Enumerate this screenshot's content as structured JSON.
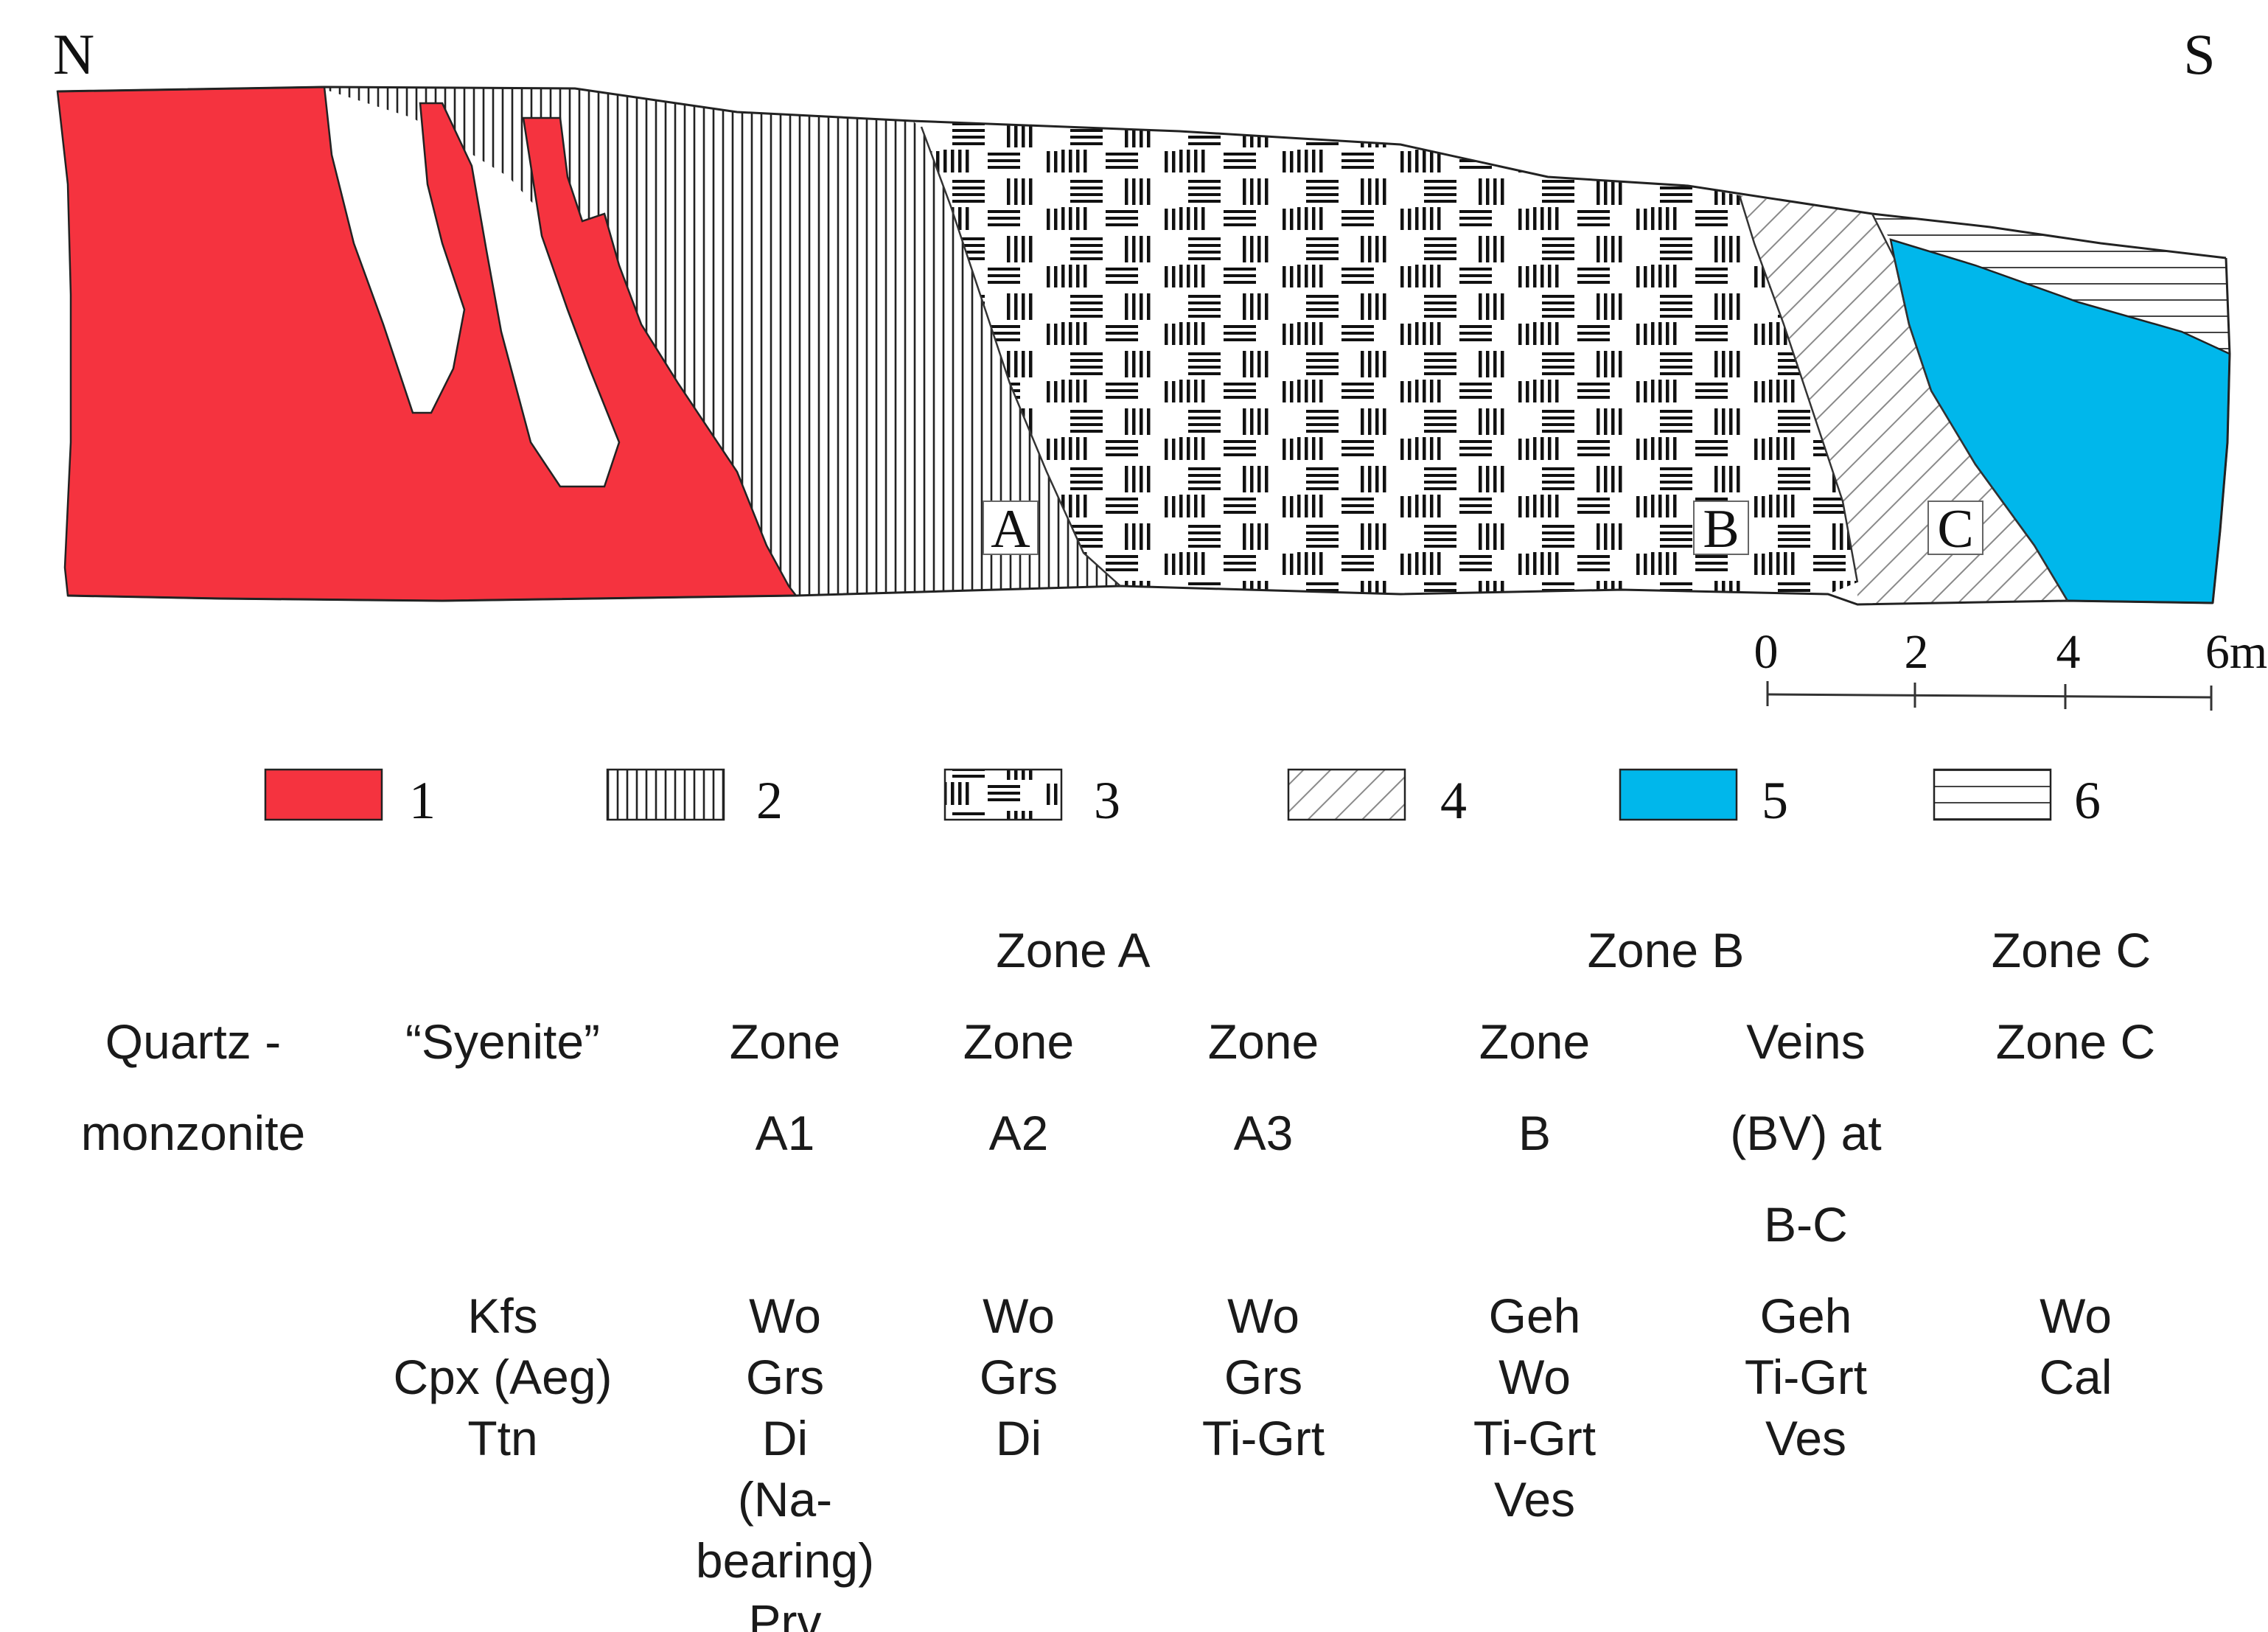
{
  "compass": {
    "north": "N",
    "south": "S"
  },
  "section_labels": {
    "a": "A",
    "b": "B",
    "c": "C"
  },
  "scale_bar": {
    "ticks": [
      "0",
      "2",
      "4",
      "6m"
    ]
  },
  "colors": {
    "unit_1": "#f5333f",
    "unit_5": "#00b7eb",
    "outline": "#222222"
  },
  "legend": [
    {
      "key": "1",
      "pattern": "solid-red"
    },
    {
      "key": "2",
      "pattern": "vertical-lines"
    },
    {
      "key": "3",
      "pattern": "alternating-line-blocks"
    },
    {
      "key": "4",
      "pattern": "diagonal-hatch"
    },
    {
      "key": "5",
      "pattern": "solid-blue"
    },
    {
      "key": "6",
      "pattern": "horizontal-lines"
    }
  ],
  "table": {
    "group_headers": {
      "zone_a": "Zone A",
      "zone_b": "Zone B",
      "zone_c": "Zone C"
    },
    "columns": [
      {
        "name_lines": [
          "Quartz -",
          "monzonite"
        ],
        "minerals": []
      },
      {
        "name_lines": [
          "“Syenite”"
        ],
        "minerals": [
          "Kfs",
          "Cpx (Aeg)",
          "Ttn"
        ]
      },
      {
        "name_lines": [
          "Zone",
          "A1"
        ],
        "minerals": [
          "Wo",
          "Grs",
          "Di",
          "(Na-",
          "bearing)",
          "Prv"
        ]
      },
      {
        "name_lines": [
          "Zone",
          "A2"
        ],
        "minerals": [
          "Wo",
          "Grs",
          "Di"
        ]
      },
      {
        "name_lines": [
          "Zone",
          "A3"
        ],
        "minerals": [
          "Wo",
          "Grs",
          "Ti-Grt"
        ]
      },
      {
        "name_lines": [
          "Zone",
          "B"
        ],
        "minerals": [
          "Geh",
          "Wo",
          "Ti-Grt",
          "Ves"
        ]
      },
      {
        "name_lines": [
          "Veins",
          "(BV) at",
          "B-C"
        ],
        "minerals": [
          "Geh",
          "Ti-Grt",
          "Ves"
        ]
      },
      {
        "name_lines": [
          "Zone C"
        ],
        "minerals": [
          "Wo",
          "Cal"
        ]
      }
    ]
  }
}
